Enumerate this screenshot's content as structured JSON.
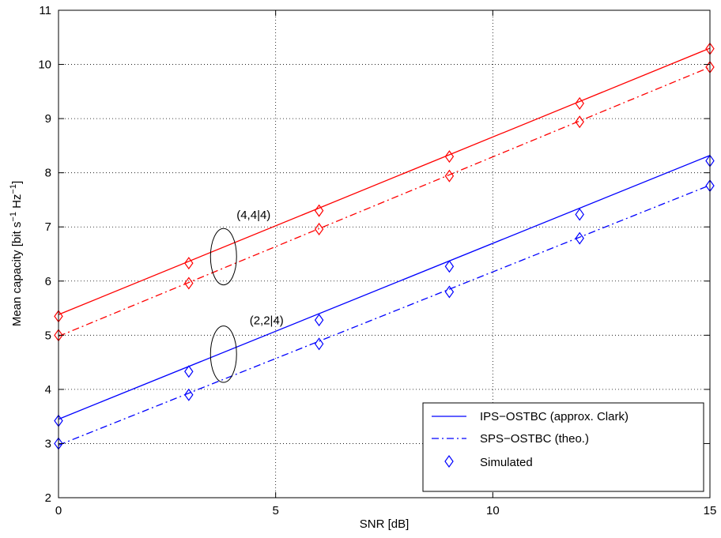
{
  "chart_data": {
    "type": "line",
    "xlabel": "SNR [dB]",
    "ylabel": "Mean capacity [bit s",
    "ylabel_sup1": "−1",
    "ylabel_mid": " Hz",
    "ylabel_sup2": "−1",
    "ylabel_end": "]",
    "xlim": [
      0,
      15
    ],
    "ylim": [
      2,
      11
    ],
    "xticks": [
      0,
      5,
      10,
      15
    ],
    "yticks": [
      2,
      3,
      4,
      5,
      6,
      7,
      8,
      9,
      10,
      11
    ],
    "grid": true,
    "legend_position": "bottom-right",
    "legend": {
      "ips": "IPS−OSTBC (approx. Clark)",
      "sps": "SPS−OSTBC (theo.)",
      "sim": "Simulated"
    },
    "x": [
      0,
      3,
      6,
      9,
      12,
      15
    ],
    "series": [
      {
        "group": "4,4|4",
        "style": "solid",
        "color": "#ff0000",
        "line_x": [
          0,
          15
        ],
        "line_y": [
          5.38,
          10.3
        ],
        "sim_values": [
          5.35,
          6.33,
          7.3,
          8.3,
          9.28,
          10.29
        ]
      },
      {
        "group": "4,4|4",
        "style": "dashdot",
        "color": "#ff0000",
        "line_x": [
          0,
          15
        ],
        "line_y": [
          4.98,
          9.95
        ],
        "sim_values": [
          5.0,
          5.96,
          6.96,
          7.94,
          8.94,
          9.95
        ]
      },
      {
        "group": "2,2|4",
        "style": "solid",
        "color": "#0000ff",
        "line_x": [
          0,
          15
        ],
        "line_y": [
          3.45,
          8.32
        ],
        "sim_values": [
          3.42,
          4.33,
          5.28,
          6.27,
          7.23,
          8.22
        ]
      },
      {
        "group": "2,2|4",
        "style": "dashdot",
        "color": "#0000ff",
        "line_x": [
          0,
          15
        ],
        "line_y": [
          2.97,
          7.77
        ],
        "sim_values": [
          3.0,
          3.9,
          4.84,
          5.8,
          6.79,
          7.76
        ]
      }
    ],
    "annotations": [
      {
        "text": "(4,4|4)",
        "x": 4.1,
        "y": 7.15,
        "ellipse_cx": 3.8,
        "ellipse_cy": 6.45,
        "ellipse_rx": 0.3,
        "ellipse_ry": 0.52
      },
      {
        "text": "(2,2|4)",
        "x": 4.4,
        "y": 5.2,
        "ellipse_cx": 3.8,
        "ellipse_cy": 4.65,
        "ellipse_rx": 0.3,
        "ellipse_ry": 0.52
      }
    ]
  }
}
